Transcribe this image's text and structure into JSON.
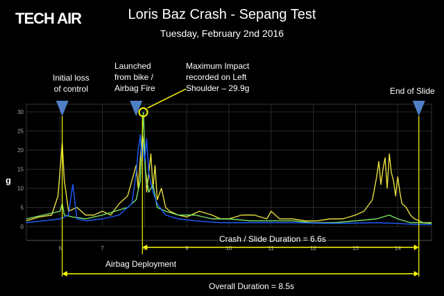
{
  "header": {
    "logo_text": "TECH AIR",
    "title": "Loris Baz Crash - Sepang Test",
    "subtitle": "Tuesday, February 2nd 2016"
  },
  "annotations": {
    "initial_loss": [
      "Initial loss",
      "of control"
    ],
    "launched": [
      "Launched",
      "from bike /",
      "Airbag Fire"
    ],
    "max_impact": [
      "Maximum Impact",
      "recorded on Left",
      "Shoulder – 29.9g"
    ],
    "end_of_slide": "End of Slide",
    "crash_slide_duration": "Crash / Slide Duration = 6.6s",
    "airbag_deployment": "Airbag Deployment",
    "overall_duration": "Overall Duration = 8.5s"
  },
  "colors": {
    "series_yellow": "#e8e040",
    "series_green": "#7ce86a",
    "series_blue": "#1f5cff",
    "marker": "#4f7fc4",
    "guide_line": "#ffff00"
  },
  "chart_data": {
    "type": "line",
    "title": "Loris Baz Crash - Sepang Test",
    "xlabel": "",
    "ylabel": "g",
    "xlim": [
      5.2,
      14.8
    ],
    "ylim": [
      0,
      32
    ],
    "x_ticks": [
      6,
      7,
      8,
      9,
      10,
      11,
      12,
      13,
      14
    ],
    "y_ticks": [
      0,
      5,
      10,
      15,
      20,
      25,
      30
    ],
    "grid": true,
    "legend": "none",
    "events": [
      {
        "name": "initial-loss",
        "x": 6.05
      },
      {
        "name": "launched",
        "x": 7.8
      },
      {
        "name": "max-impact",
        "x": 7.97,
        "y": 29.9
      },
      {
        "name": "end-of-slide",
        "x": 14.5
      }
    ],
    "spans": [
      {
        "name": "crash-slide",
        "from": 7.95,
        "to": 14.5,
        "label": "Crash / Slide Duration = 6.6s"
      },
      {
        "name": "overall",
        "from": 6.05,
        "to": 14.5,
        "label": "Overall Duration = 8.5s"
      }
    ],
    "series": [
      {
        "color": "#e8e040",
        "x": [
          5.2,
          5.5,
          5.8,
          5.95,
          6.0,
          6.05,
          6.1,
          6.2,
          6.4,
          6.6,
          6.8,
          7.0,
          7.2,
          7.4,
          7.6,
          7.7,
          7.8,
          7.85,
          7.9,
          7.95,
          8.0,
          8.05,
          8.1,
          8.15,
          8.2,
          8.25,
          8.3,
          8.4,
          8.5,
          8.6,
          8.8,
          9.0,
          9.3,
          9.6,
          9.8,
          10.0,
          10.3,
          10.6,
          10.9,
          11.0,
          11.2,
          11.5,
          11.8,
          12.1,
          12.4,
          12.7,
          13.0,
          13.2,
          13.4,
          13.5,
          13.55,
          13.6,
          13.65,
          13.7,
          13.75,
          13.8,
          13.85,
          13.9,
          13.95,
          14.0,
          14.05,
          14.1,
          14.2,
          14.3,
          14.4,
          14.5,
          14.6,
          14.8
        ],
        "y": [
          1.5,
          2.5,
          3,
          8,
          15,
          22,
          12,
          4,
          5,
          3,
          3,
          4,
          3,
          6,
          8,
          12,
          16,
          10,
          18,
          24,
          20,
          9,
          14,
          19,
          10,
          16,
          7,
          10,
          5,
          4,
          3,
          2.5,
          4,
          3,
          2,
          2,
          3,
          3,
          2,
          4,
          2,
          2,
          1.5,
          1.5,
          2,
          2,
          3,
          4,
          7,
          13,
          17,
          11,
          15,
          18,
          10,
          19,
          14,
          12,
          8,
          13,
          9,
          6,
          5,
          3,
          2,
          1.5,
          1,
          1
        ]
      },
      {
        "color": "#7ce86a",
        "x": [
          5.2,
          5.6,
          6.0,
          6.05,
          6.1,
          6.3,
          6.6,
          7.0,
          7.3,
          7.6,
          7.8,
          7.9,
          7.97,
          8.02,
          8.1,
          8.2,
          8.3,
          8.5,
          8.8,
          9.2,
          9.6,
          10.0,
          10.5,
          11.0,
          11.5,
          12.0,
          12.5,
          13.0,
          13.5,
          13.8,
          14.0,
          14.3,
          14.5,
          14.8
        ],
        "y": [
          2,
          3,
          4,
          6,
          3,
          2.5,
          2,
          3,
          4,
          5,
          7,
          12,
          29.9,
          15,
          9,
          11,
          5,
          4,
          3,
          3,
          2,
          2,
          1.5,
          1.5,
          1.5,
          1,
          1,
          1.5,
          2,
          3,
          2,
          1,
          1,
          0.8
        ]
      },
      {
        "color": "#1f5cff",
        "x": [
          5.2,
          5.6,
          6.0,
          6.2,
          6.3,
          6.4,
          6.6,
          7.0,
          7.4,
          7.7,
          7.8,
          7.85,
          7.9,
          7.93,
          7.96,
          8.0,
          8.05,
          8.1,
          8.2,
          8.3,
          8.5,
          8.8,
          9.2,
          9.8,
          10.5,
          11.5,
          12.5,
          13.5,
          14.0,
          14.5,
          14.8
        ],
        "y": [
          1,
          1.5,
          2,
          3,
          11,
          2,
          1.5,
          2,
          3,
          6,
          14,
          20,
          24,
          18,
          22,
          17,
          23,
          14,
          9,
          6,
          3,
          2,
          1.5,
          1,
          1,
          1,
          0.8,
          1,
          0.8,
          0.5,
          0.5
        ]
      }
    ]
  }
}
